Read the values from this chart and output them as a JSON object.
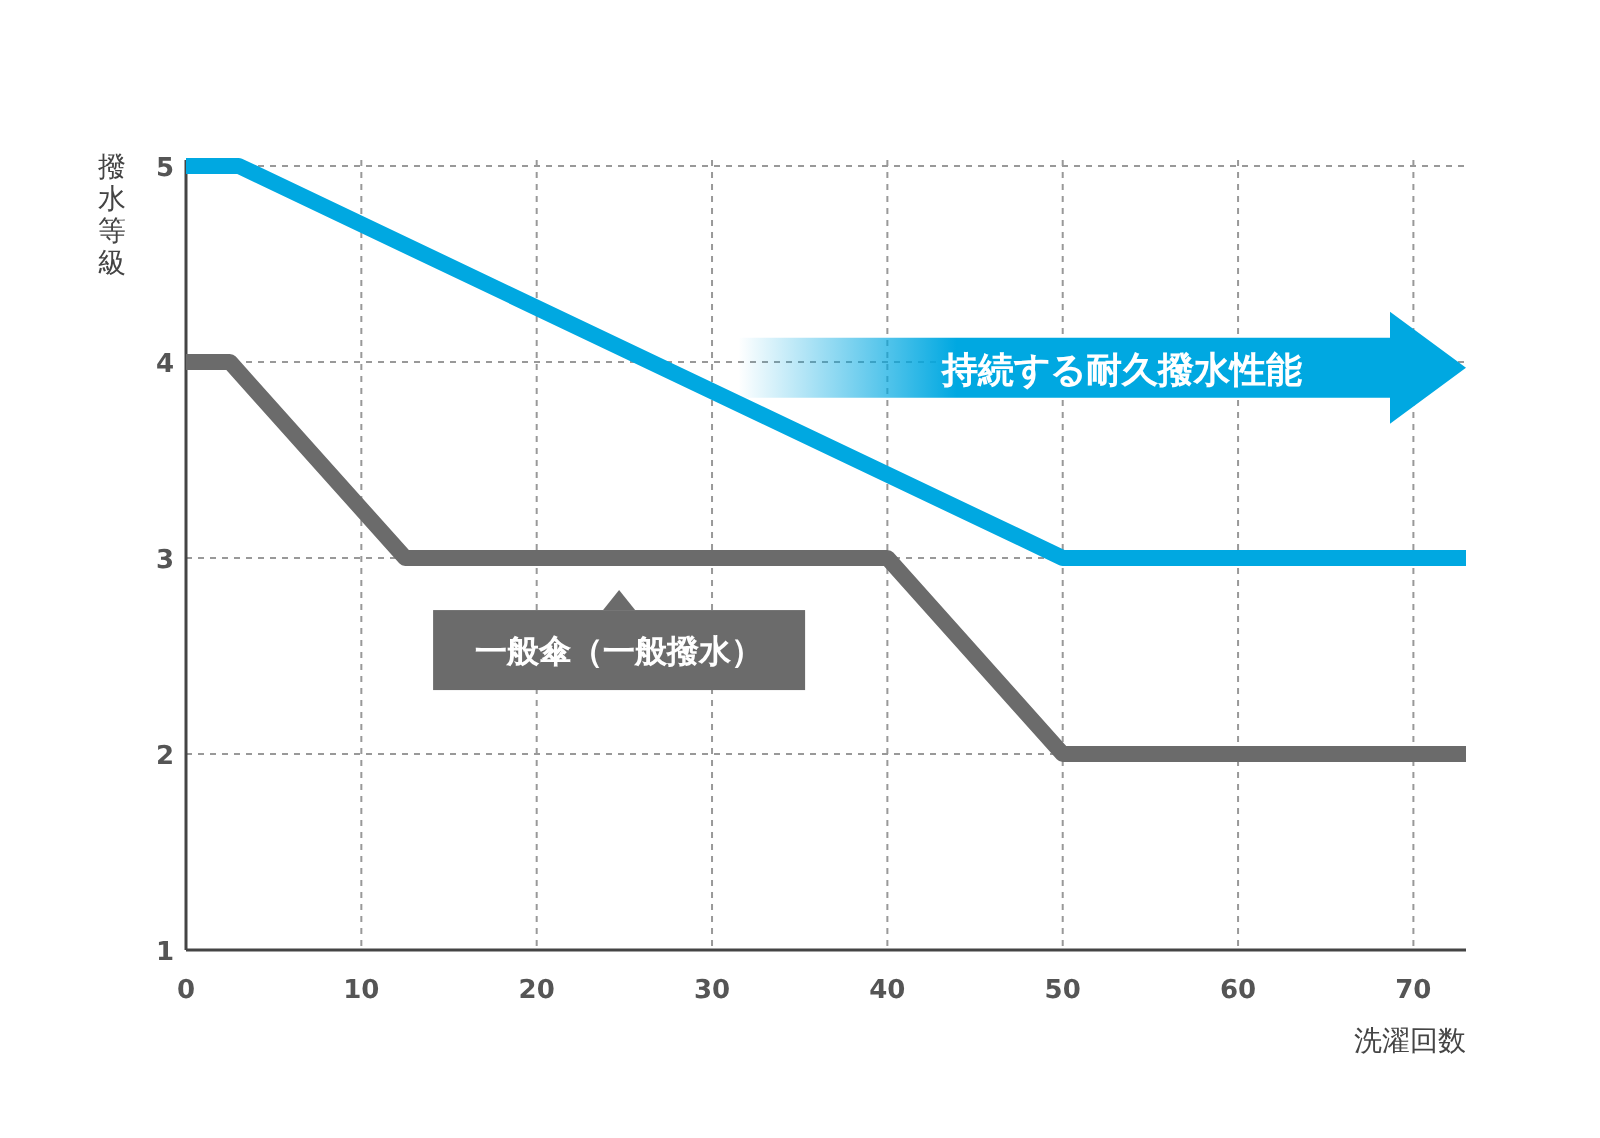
{
  "chart_data": {
    "type": "line",
    "ylabel": "撥水等級",
    "xlabel": "洗濯回数",
    "xlim": [
      0,
      73
    ],
    "ylim": [
      1,
      5.03
    ],
    "xticks": [
      0,
      10,
      20,
      30,
      40,
      50,
      60,
      70
    ],
    "yticks": [
      1,
      2,
      3,
      4,
      5
    ],
    "grid": true,
    "legend": "center",
    "marker": "none",
    "line_style": "solid",
    "series": [
      {
        "color": "#00a8e1",
        "x": [
          0,
          3,
          50,
          73
        ],
        "values": [
          5,
          5,
          3,
          3
        ]
      },
      {
        "name": "一般傘（一般撥水）",
        "color": "#6b6b6b",
        "x": [
          0,
          2.5,
          12.5,
          40,
          50,
          73
        ],
        "values": [
          4,
          4,
          3,
          3,
          2,
          2
        ]
      }
    ],
    "annotations": [
      "持続する耐久撥水性能"
    ]
  }
}
